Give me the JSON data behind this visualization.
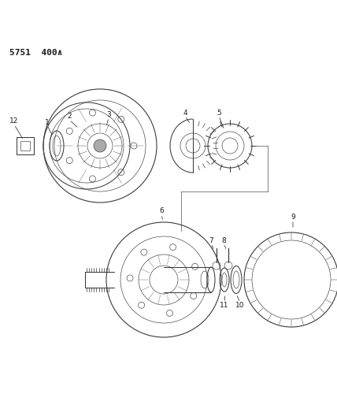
{
  "bg_color": "#ffffff",
  "label_color": "#1a1a1a",
  "line_color": "#3a3a3a",
  "header_text": "5751  400∧",
  "header_fontsize": 8,
  "fig_width": 4.28,
  "fig_height": 5.33,
  "dpi": 100
}
